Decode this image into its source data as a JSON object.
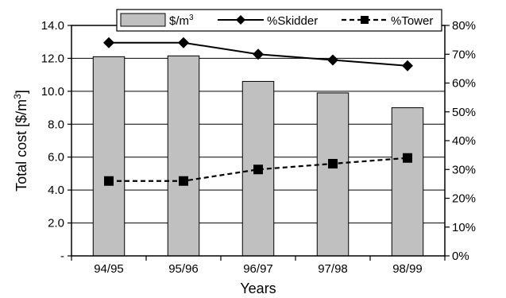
{
  "chart_data": {
    "type": "bar",
    "categories": [
      "94/95",
      "95/96",
      "96/97",
      "97/98",
      "98/99"
    ],
    "series": [
      {
        "name": "$/m3",
        "axis": "left",
        "kind": "bar",
        "color": "#c0c0c0",
        "values": [
          12.1,
          12.15,
          10.6,
          9.9,
          9.0
        ]
      },
      {
        "name": "%Skidder",
        "axis": "right",
        "kind": "line",
        "marker": "diamond",
        "line_style": "solid",
        "color": "#000000",
        "values": [
          74,
          74,
          70,
          68,
          66
        ]
      },
      {
        "name": "%Tower",
        "axis": "right",
        "kind": "line",
        "marker": "square",
        "line_style": "dashed",
        "color": "#000000",
        "values": [
          26,
          26,
          30,
          32,
          34
        ]
      }
    ],
    "xlabel": "Years",
    "ylabel": "Total cost [$/m3]",
    "ylim": [
      0,
      14
    ],
    "y2lim": [
      0,
      80
    ],
    "y_ticks": [
      "-",
      "2.0",
      "4.0",
      "6.0",
      "8.0",
      "10.0",
      "12.0",
      "14.0"
    ],
    "y2_ticks": [
      "0%",
      "10%",
      "20%",
      "30%",
      "40%",
      "50%",
      "60%",
      "70%",
      "80%"
    ],
    "grid": "horizontal",
    "legend": {
      "position": "top",
      "labels": [
        {
          "base": "$/m",
          "sup": "3"
        },
        {
          "base": "%Skidder",
          "sup": ""
        },
        {
          "base": "%Tower",
          "sup": ""
        }
      ]
    },
    "ylabel_parts": {
      "base": "Total cost [$/m",
      "sup": "3",
      "tail": "]"
    }
  }
}
